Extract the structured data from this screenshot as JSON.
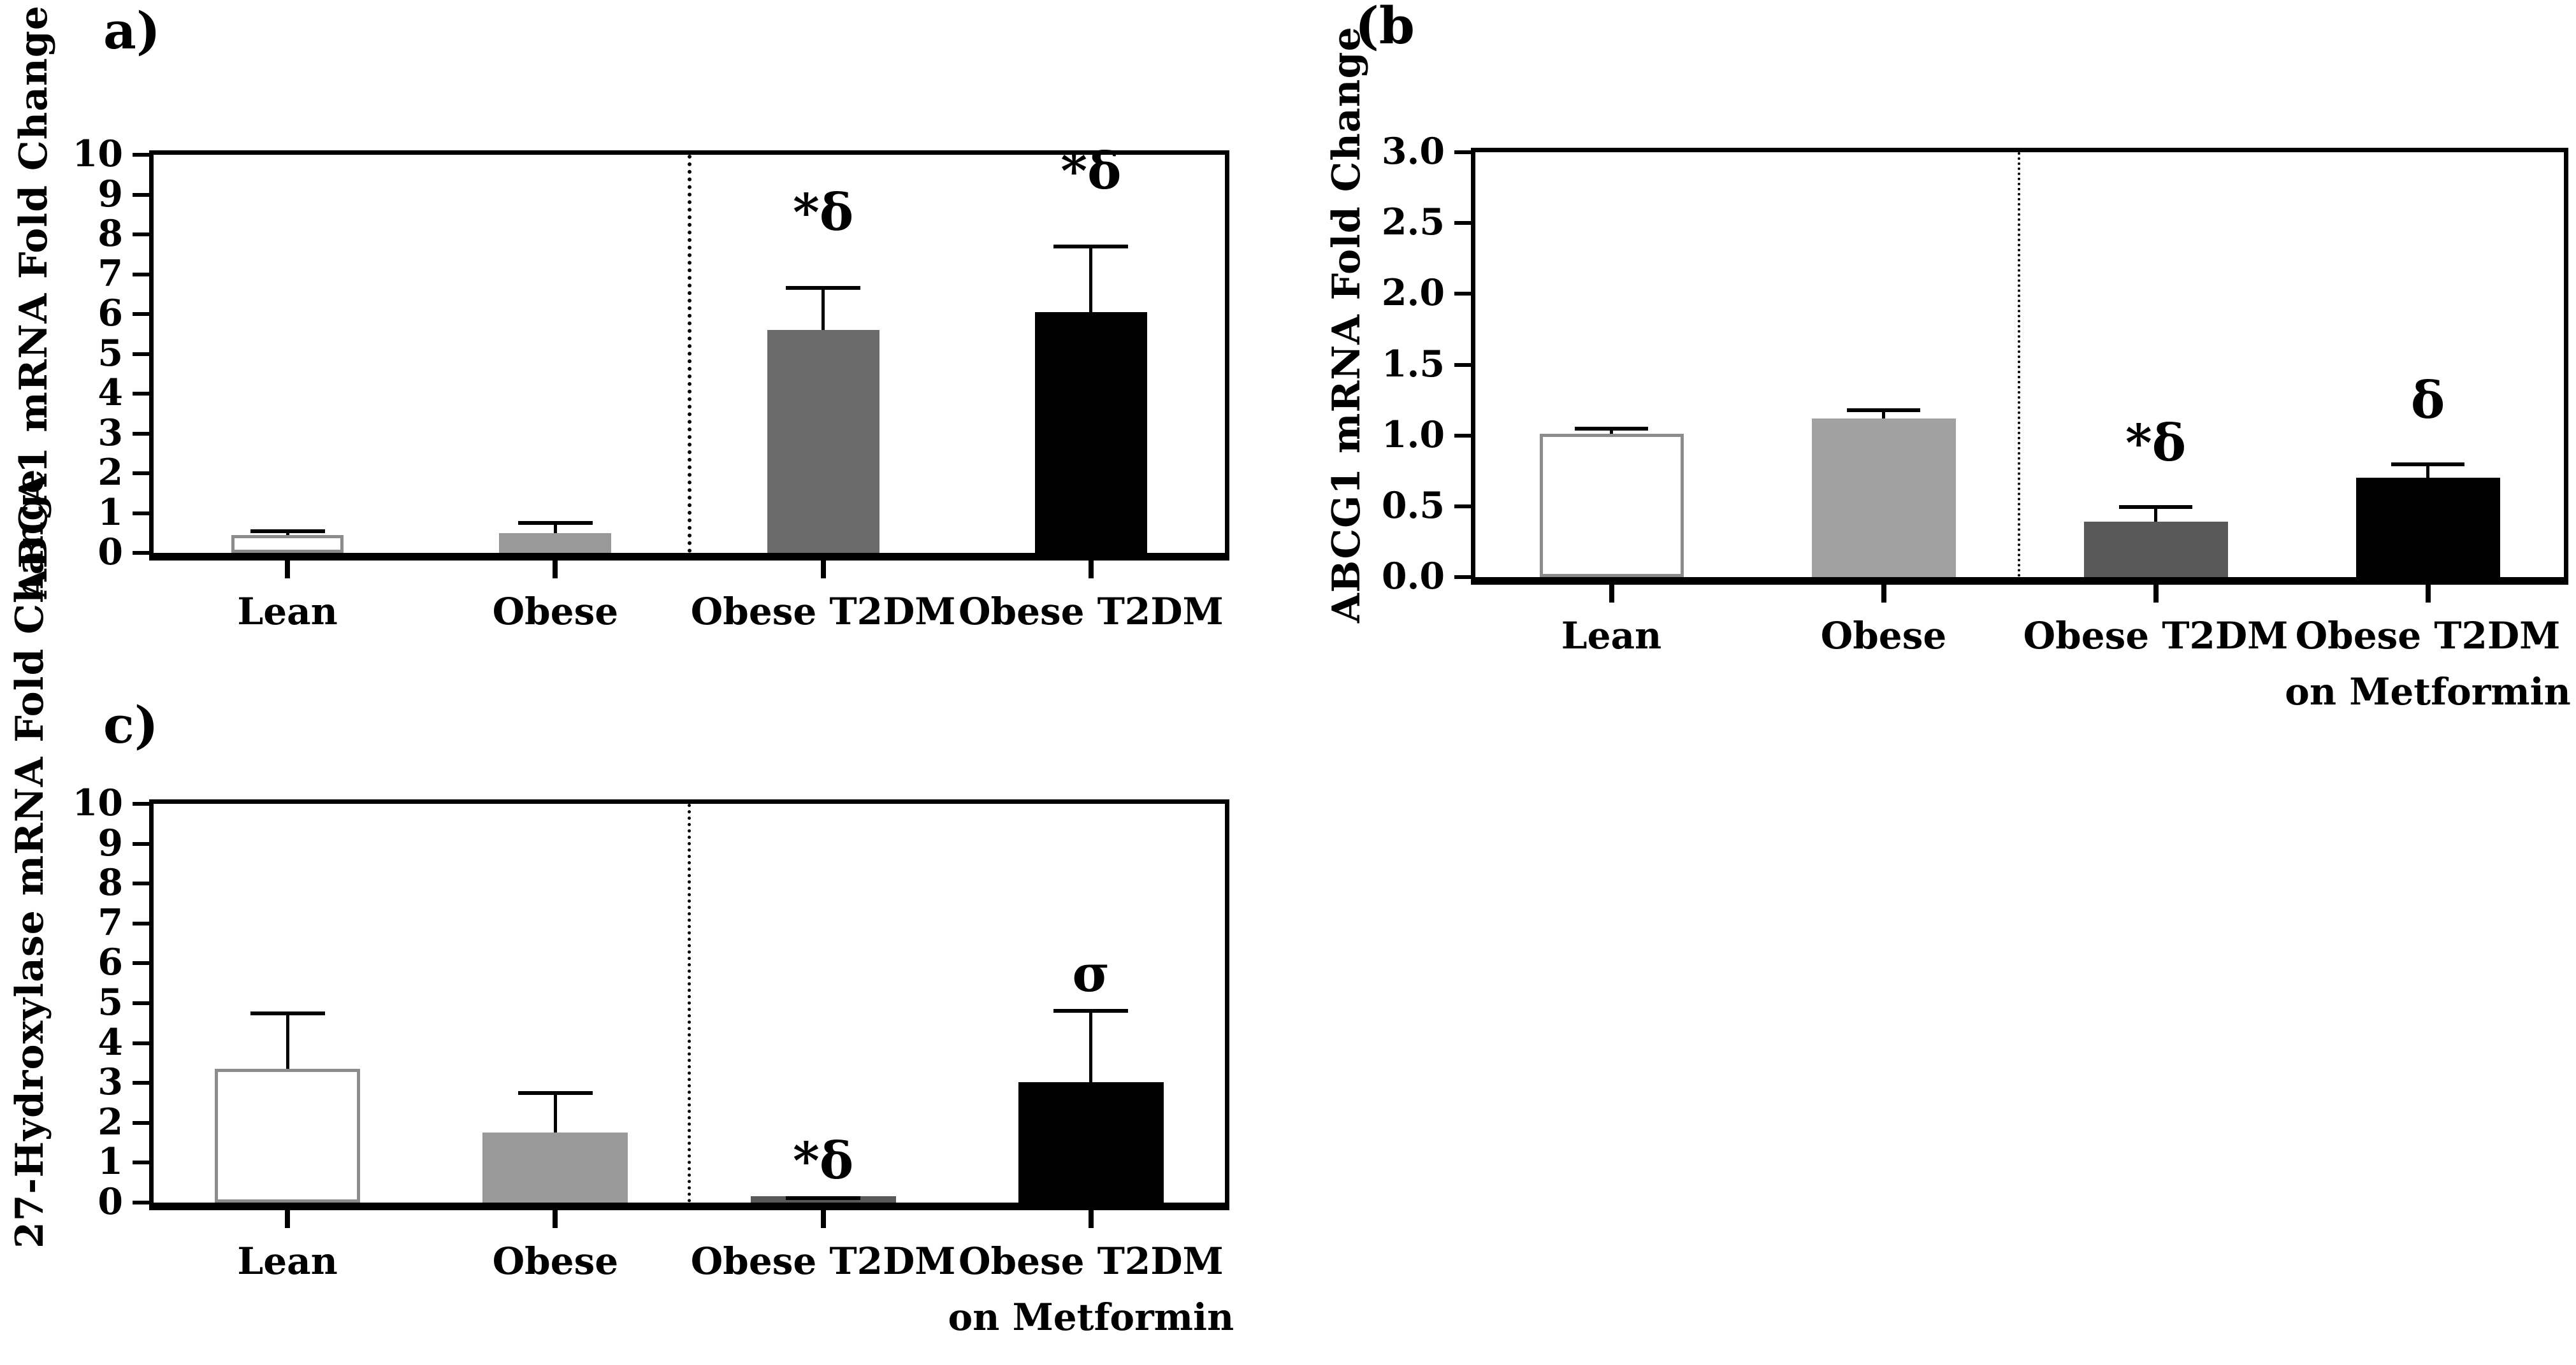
{
  "chart_data": [
    {
      "type": "bar",
      "panel_label": "a)",
      "ylabel": "ABCA1 mRNA Fold Change",
      "xlabel": "",
      "ylim": [
        0,
        10
      ],
      "yticks": [
        "10",
        "9",
        "8",
        "7",
        "6",
        "5",
        "4",
        "3",
        "2",
        "1",
        "0"
      ],
      "ytick_values": [
        10,
        9,
        8,
        7,
        6,
        5,
        4,
        3,
        2,
        1,
        0
      ],
      "categories": [
        "Lean",
        "Obese",
        "Obese T2DM",
        "Obese T2DM"
      ],
      "categories_line2": [
        "",
        "",
        "",
        ""
      ],
      "values": [
        0.45,
        0.5,
        5.6,
        6.05
      ],
      "error_tops": [
        0.6,
        0.8,
        6.7,
        7.75
      ],
      "markers": [
        "",
        "",
        "*δ",
        "*δ"
      ],
      "bar_fills": [
        "#ffffff",
        "#999999",
        "#6b6b6b",
        "#000000"
      ],
      "bar_borders": [
        "#8c8c8c",
        "#999999",
        "#6b6b6b",
        "#000000"
      ],
      "separator_after_index": 1,
      "grid": "off",
      "legend": "none"
    },
    {
      "type": "bar",
      "panel_label": "(b",
      "ylabel": "ABCG1 mRNA Fold Change",
      "xlabel": "",
      "ylim": [
        0,
        3
      ],
      "yticks": [
        "3.0",
        "2.5",
        "2.0",
        "1.5",
        "1.0",
        "0.5",
        "0.0"
      ],
      "ytick_values": [
        3,
        2.5,
        2,
        1.5,
        1,
        0.5,
        0
      ],
      "categories": [
        "Lean",
        "Obese",
        "Obese T2DM",
        "Obese T2DM"
      ],
      "categories_line2": [
        "",
        "",
        "",
        "on Metformin"
      ],
      "values": [
        1.01,
        1.12,
        0.39,
        0.7
      ],
      "error_tops": [
        1.06,
        1.19,
        0.51,
        0.81
      ],
      "markers": [
        "",
        "",
        "*δ",
        "δ"
      ],
      "bar_fills": [
        "#ffffff",
        "#a1a1a1",
        "#595959",
        "#000000"
      ],
      "bar_borders": [
        "#8c8c8c",
        "#a1a1a1",
        "#595959",
        "#000000"
      ],
      "separator_after_index": 1,
      "grid": "off",
      "legend": "none"
    },
    {
      "type": "bar",
      "panel_label": "c)",
      "ylabel": "27-Hydroxylase mRNA Fold Change",
      "xlabel": "",
      "ylim": [
        0,
        10
      ],
      "yticks": [
        "10",
        "9",
        "8",
        "7",
        "6",
        "5",
        "4",
        "3",
        "2",
        "1",
        "0"
      ],
      "ytick_values": [
        10,
        9,
        8,
        7,
        6,
        5,
        4,
        3,
        2,
        1,
        0
      ],
      "categories": [
        "Lean",
        "Obese",
        "Obese T2DM",
        "Obese T2DM"
      ],
      "categories_line2": [
        "",
        "",
        "",
        "on Metformin"
      ],
      "values": [
        3.35,
        1.75,
        0.08,
        3.02
      ],
      "error_tops": [
        4.8,
        2.8,
        0.16,
        4.85
      ],
      "markers": [
        "",
        "",
        "*δ",
        "σ"
      ],
      "bar_fills": [
        "#ffffff",
        "#999999",
        "#595959",
        "#000000"
      ],
      "bar_borders": [
        "#8c8c8c",
        "#999999",
        "#595959",
        "#000000"
      ],
      "separator_after_index": 1,
      "grid": "off",
      "legend": "none"
    }
  ],
  "colors": {
    "background": "#ffffff",
    "axis": "#000000",
    "lean_bar_fill": "#ffffff",
    "lean_bar_border": "#8c8c8c",
    "obese_bar": "#999999",
    "obese_t2dm_bar": "#6b6b6b",
    "metformin_bar": "#000000"
  }
}
